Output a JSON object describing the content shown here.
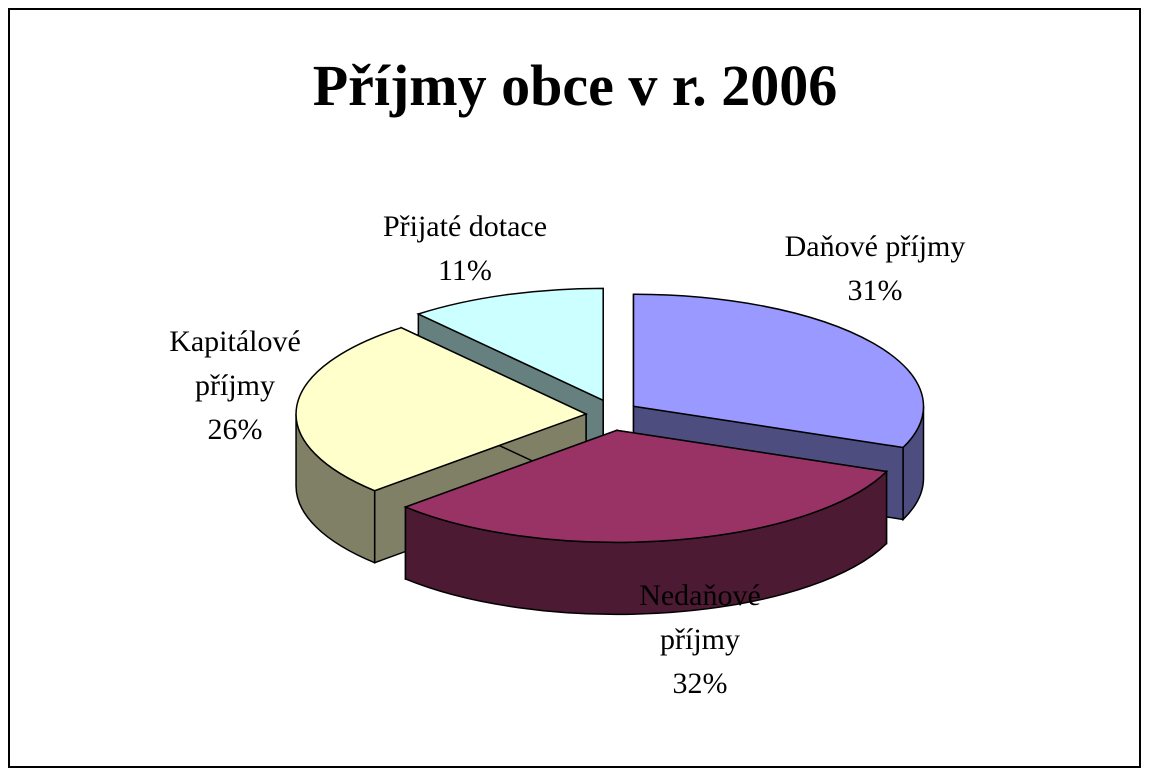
{
  "chart_data": {
    "type": "pie",
    "title": "Příjmy obce v r. 2006",
    "categories": [
      "Daňové příjmy",
      "Nedaňové příjmy",
      "Kapitálové příjmy",
      "Přijaté dotace"
    ],
    "values": [
      31,
      32,
      26,
      11
    ],
    "value_labels": [
      "31%",
      "32%",
      "26%",
      "11%"
    ],
    "colors": [
      "#9999ff",
      "#993366",
      "#ffffcc",
      "#ccffff"
    ]
  }
}
